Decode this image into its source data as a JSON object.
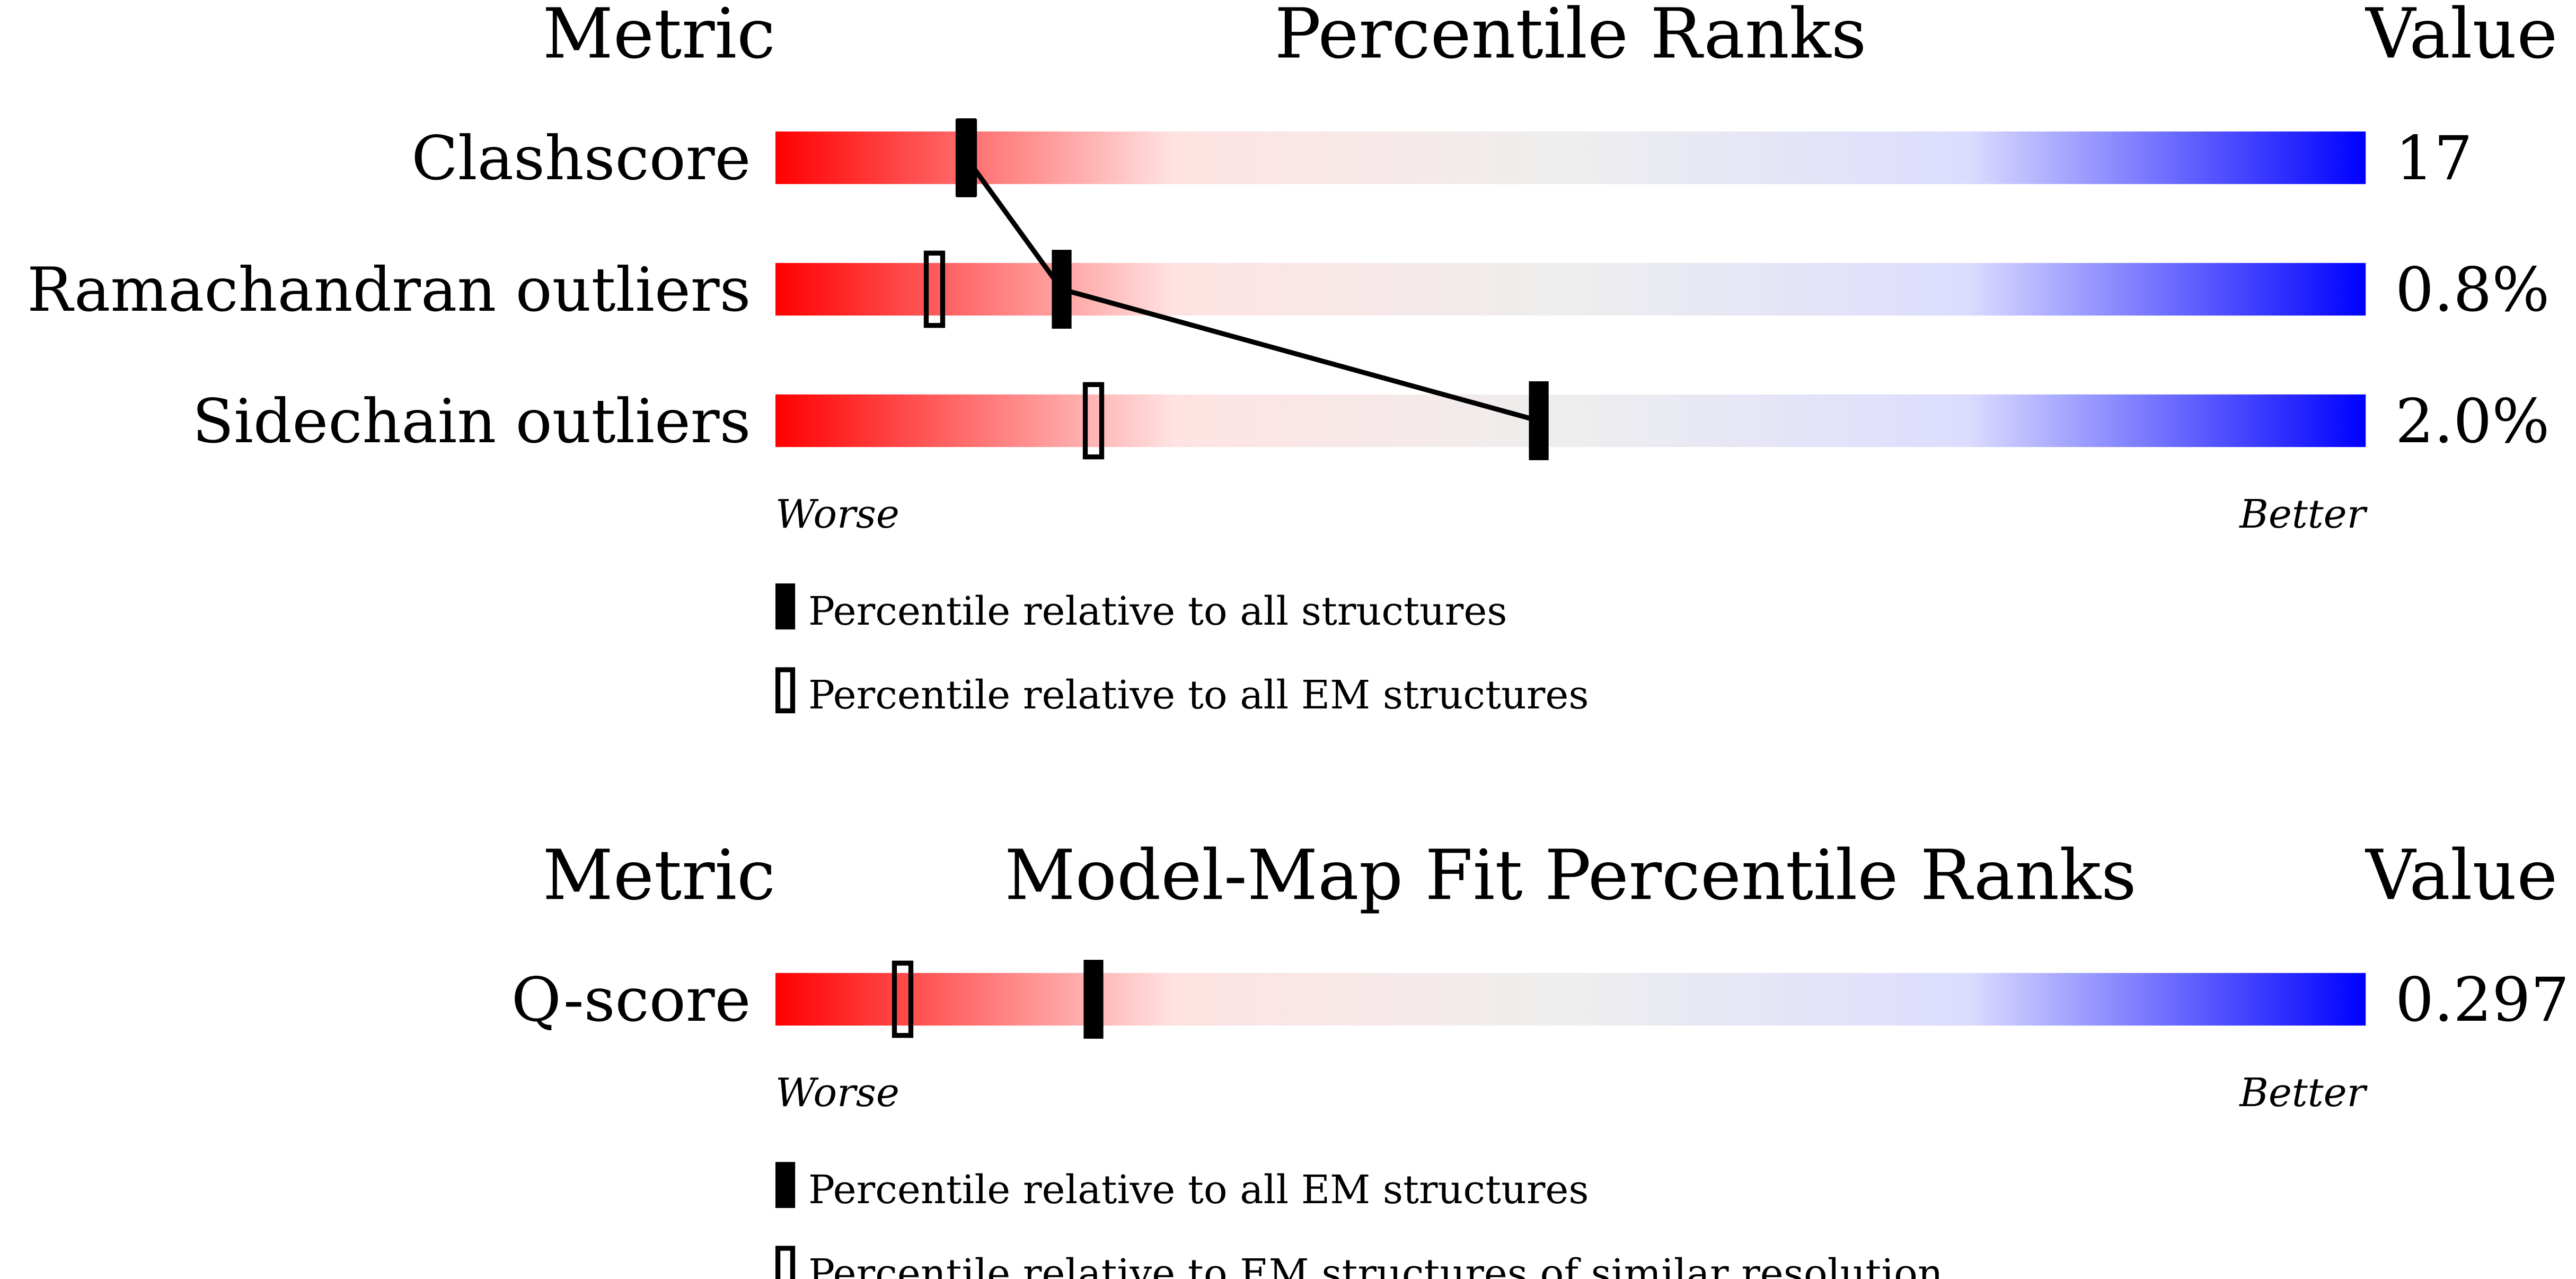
{
  "chart_data": [
    {
      "type": "slider",
      "headers": [
        "Metric",
        "Percentile Ranks",
        "Value"
      ],
      "categories": [
        "Clashscore",
        "Ramachandran outliers",
        "Sidechain outliers"
      ],
      "value_labels": [
        "17",
        "0.8%",
        "2.0%"
      ],
      "xlim": [
        0,
        100
      ],
      "axis_labels": [
        "Worse",
        "Better"
      ],
      "gradient": [
        "#ff0000",
        "#ffe2e2",
        "#eeeeee",
        "#dcdcff",
        "#0000ff"
      ],
      "connect_series": 0,
      "series": [
        {
          "name": "Percentile relative to all structures",
          "style": "filled",
          "color": "#000000",
          "values": [
            12,
            18,
            48
          ]
        },
        {
          "name": "Percentile relative to all EM structures",
          "style": "outline",
          "color": "#000000",
          "values": [
            12,
            10,
            20
          ]
        }
      ]
    },
    {
      "type": "slider",
      "headers": [
        "Metric",
        "Model-Map Fit Percentile Ranks",
        "Value"
      ],
      "categories": [
        "Q-score"
      ],
      "value_labels": [
        "0.297"
      ],
      "xlim": [
        0,
        100
      ],
      "axis_labels": [
        "Worse",
        "Better"
      ],
      "gradient": [
        "#ff0000",
        "#ffe2e2",
        "#eeeeee",
        "#dcdcff",
        "#0000ff"
      ],
      "series": [
        {
          "name": "Percentile relative to all EM structures",
          "style": "filled",
          "color": "#000000",
          "values": [
            20
          ]
        },
        {
          "name": "Percentile relative to EM structures of similar resolution",
          "style": "outline",
          "color": "#000000",
          "values": [
            8
          ]
        }
      ]
    }
  ]
}
